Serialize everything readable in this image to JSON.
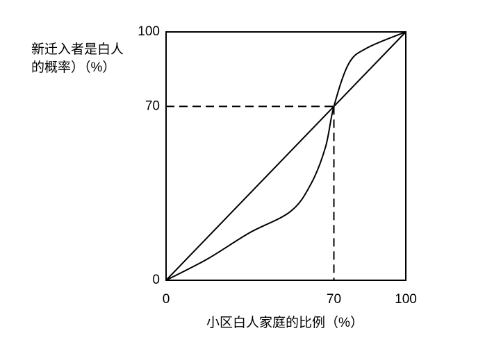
{
  "chart_data": {
    "type": "line",
    "y_label_lines": [
      "新迁入者是白人",
      "的概率）（%）"
    ],
    "x_label": "小区白人家庭的比例（%）",
    "series": [
      {
        "color": "#000000",
        "x": [
          0,
          100
        ],
        "values": [
          0,
          100
        ]
      },
      {
        "color": "#000000",
        "x": [
          0,
          17.3,
          34.6,
          51.9,
          60.5,
          66.5,
          70,
          76.3,
          84.2,
          100
        ],
        "values": [
          0,
          8.6,
          19,
          27.7,
          38.9,
          53.6,
          70,
          87.4,
          93.7,
          100
        ]
      }
    ],
    "xlim": [
      0,
      100
    ],
    "ylim": [
      0,
      100
    ],
    "xticks": [
      0,
      70,
      100
    ],
    "yticks": [
      0,
      70,
      100
    ],
    "reference_lines": true
  }
}
